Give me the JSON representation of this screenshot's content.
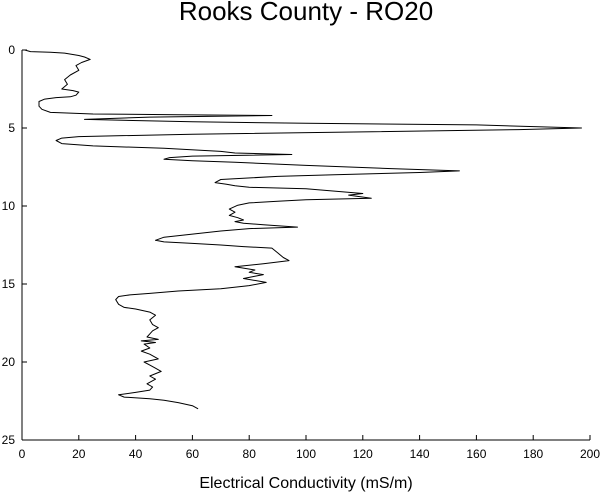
{
  "chart_data": {
    "type": "line",
    "title": "Rooks County - RO20",
    "xlabel": "Electrical Conductivity (mS/m)",
    "ylabel": "",
    "xlim": [
      0,
      200
    ],
    "ylim": [
      25,
      0
    ],
    "x_ticks": [
      "0",
      "20",
      "40",
      "60",
      "80",
      "100",
      "120",
      "140",
      "160",
      "180",
      "200"
    ],
    "y_ticks": [
      "0",
      "5",
      "10",
      "15",
      "20",
      "25"
    ],
    "grid": false,
    "series": [
      {
        "color": "#000000",
        "points": [
          [
            1,
            0.0
          ],
          [
            3,
            0.1
          ],
          [
            10,
            0.15
          ],
          [
            15,
            0.2
          ],
          [
            20,
            0.35
          ],
          [
            22,
            0.45
          ],
          [
            24,
            0.6
          ],
          [
            21,
            0.8
          ],
          [
            19,
            1.0
          ],
          [
            20,
            1.3
          ],
          [
            17,
            1.6
          ],
          [
            15,
            1.9
          ],
          [
            16,
            2.2
          ],
          [
            14,
            2.5
          ],
          [
            18,
            2.6
          ],
          [
            20,
            2.7
          ],
          [
            19,
            2.9
          ],
          [
            17,
            3.0
          ],
          [
            12,
            3.05
          ],
          [
            8,
            3.15
          ],
          [
            6,
            3.3
          ],
          [
            6,
            3.6
          ],
          [
            7,
            3.8
          ],
          [
            10,
            4.0
          ],
          [
            25,
            4.1
          ],
          [
            55,
            4.15
          ],
          [
            88,
            4.2
          ],
          [
            45,
            4.3
          ],
          [
            22,
            4.45
          ],
          [
            60,
            4.6
          ],
          [
            100,
            4.7
          ],
          [
            160,
            4.8
          ],
          [
            197,
            5.0
          ],
          [
            175,
            5.1
          ],
          [
            120,
            5.25
          ],
          [
            60,
            5.4
          ],
          [
            20,
            5.55
          ],
          [
            14,
            5.65
          ],
          [
            12,
            5.8
          ],
          [
            14,
            6.0
          ],
          [
            25,
            6.15
          ],
          [
            50,
            6.3
          ],
          [
            70,
            6.5
          ],
          [
            75,
            6.6
          ],
          [
            95,
            6.7
          ],
          [
            60,
            6.8
          ],
          [
            52,
            6.9
          ],
          [
            50,
            7.0
          ],
          [
            60,
            7.1
          ],
          [
            75,
            7.2
          ],
          [
            100,
            7.4
          ],
          [
            130,
            7.6
          ],
          [
            154,
            7.75
          ],
          [
            140,
            7.85
          ],
          [
            110,
            8.0
          ],
          [
            90,
            8.1
          ],
          [
            70,
            8.3
          ],
          [
            68,
            8.5
          ],
          [
            72,
            8.6
          ],
          [
            75,
            8.7
          ],
          [
            80,
            8.8
          ],
          [
            100,
            8.9
          ],
          [
            120,
            9.2
          ],
          [
            115,
            9.3
          ],
          [
            123,
            9.5
          ],
          [
            100,
            9.6
          ],
          [
            90,
            9.7
          ],
          [
            80,
            9.8
          ],
          [
            76,
            9.95
          ],
          [
            73,
            10.2
          ],
          [
            75,
            10.4
          ],
          [
            73,
            10.6
          ],
          [
            76,
            10.75
          ],
          [
            78,
            10.9
          ],
          [
            75,
            11.0
          ],
          [
            78,
            11.1
          ],
          [
            85,
            11.2
          ],
          [
            97,
            11.35
          ],
          [
            80,
            11.45
          ],
          [
            70,
            11.6
          ],
          [
            60,
            11.8
          ],
          [
            50,
            12.0
          ],
          [
            47,
            12.2
          ],
          [
            50,
            12.3
          ],
          [
            60,
            12.4
          ],
          [
            70,
            12.5
          ],
          [
            78,
            12.6
          ],
          [
            88,
            12.7
          ],
          [
            90,
            13.0
          ],
          [
            92,
            13.3
          ],
          [
            94,
            13.5
          ],
          [
            85,
            13.7
          ],
          [
            75,
            13.9
          ],
          [
            82,
            14.1
          ],
          [
            80,
            14.25
          ],
          [
            85,
            14.4
          ],
          [
            82,
            14.5
          ],
          [
            78,
            14.65
          ],
          [
            86,
            14.9
          ],
          [
            80,
            15.1
          ],
          [
            70,
            15.3
          ],
          [
            55,
            15.45
          ],
          [
            45,
            15.6
          ],
          [
            38,
            15.7
          ],
          [
            34,
            15.8
          ],
          [
            33,
            16.0
          ],
          [
            34,
            16.3
          ],
          [
            36,
            16.5
          ],
          [
            40,
            16.6
          ],
          [
            45,
            16.8
          ],
          [
            47,
            17.0
          ],
          [
            45,
            17.3
          ],
          [
            46,
            17.6
          ],
          [
            48,
            17.8
          ],
          [
            46,
            18.0
          ],
          [
            45,
            18.2
          ],
          [
            44,
            18.4
          ],
          [
            48,
            18.55
          ],
          [
            42,
            18.65
          ],
          [
            47,
            18.75
          ],
          [
            43,
            18.85
          ],
          [
            45,
            19.1
          ],
          [
            42,
            19.3
          ],
          [
            45,
            19.5
          ],
          [
            48,
            19.8
          ],
          [
            43,
            20.0
          ],
          [
            45,
            20.2
          ],
          [
            47,
            20.4
          ],
          [
            49,
            20.6
          ],
          [
            45,
            20.9
          ],
          [
            47,
            21.1
          ],
          [
            44,
            21.4
          ],
          [
            46,
            21.6
          ],
          [
            45,
            21.8
          ],
          [
            40,
            21.95
          ],
          [
            34,
            22.1
          ],
          [
            36,
            22.25
          ],
          [
            45,
            22.35
          ],
          [
            50,
            22.45
          ],
          [
            55,
            22.6
          ],
          [
            60,
            22.8
          ],
          [
            62,
            23.0
          ]
        ]
      }
    ]
  }
}
